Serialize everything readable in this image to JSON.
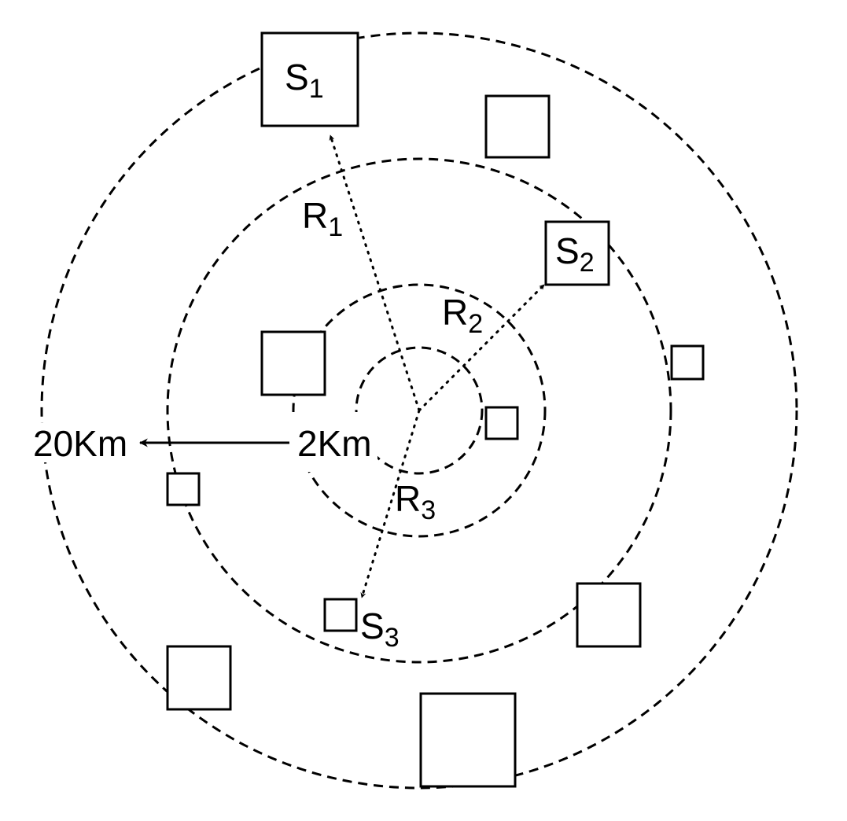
{
  "diagram": {
    "stations": {
      "s1": {
        "letter": "S",
        "sub": "1"
      },
      "s2": {
        "letter": "S",
        "sub": "2"
      },
      "s3": {
        "letter": "S",
        "sub": "3"
      }
    },
    "radii": {
      "r1": {
        "letter": "R",
        "sub": "1"
      },
      "r2": {
        "letter": "R",
        "sub": "2"
      },
      "r3": {
        "letter": "R",
        "sub": "3"
      }
    },
    "distance": {
      "inner": "2Km",
      "outer": "20Km"
    }
  }
}
